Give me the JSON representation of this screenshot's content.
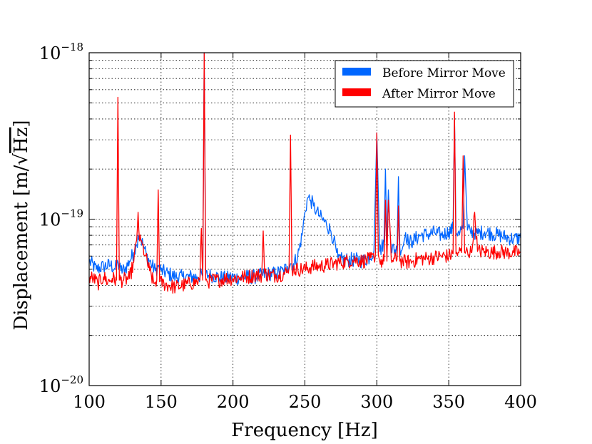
{
  "chart_data": {
    "type": "line",
    "title": "",
    "xlabel": "Frequency [Hz]",
    "ylabel": "Displacement [m/√Hz]",
    "ylabel_main": "Displacement [m/",
    "ylabel_radicand": "Hz",
    "ylabel_close": "]",
    "xlim": [
      100,
      400
    ],
    "ylim": [
      1e-20,
      1e-18
    ],
    "yscale": "log",
    "grid": true,
    "legend_position": "top-right",
    "x_ticks": [
      100,
      150,
      200,
      250,
      300,
      350,
      400
    ],
    "x_tick_labels": [
      "100",
      "150",
      "200",
      "250",
      "300",
      "350",
      "400"
    ],
    "y_ticks": [
      1e-20,
      1e-19,
      1e-18
    ],
    "y_tick_labels": [
      {
        "base": "10",
        "exp": "−20"
      },
      {
        "base": "10",
        "exp": "−19"
      },
      {
        "base": "10",
        "exp": "−18"
      }
    ],
    "series": [
      {
        "name": "Before Mirror Move",
        "color": "#0066ff",
        "x": [
          100,
          105,
          110,
          115,
          118,
          120,
          122,
          125,
          128,
          131,
          133,
          134,
          136,
          138,
          140,
          143,
          146,
          148,
          150,
          155,
          160,
          165,
          170,
          175,
          179,
          180,
          181,
          185,
          190,
          195,
          200,
          205,
          210,
          215,
          220,
          225,
          230,
          235,
          238,
          240,
          242,
          245,
          248,
          250,
          252,
          254,
          256,
          258,
          260,
          262,
          265,
          268,
          270,
          272,
          273,
          275,
          280,
          285,
          290,
          295,
          298,
          300,
          302,
          305,
          306,
          307,
          308,
          310,
          314,
          315,
          316,
          318,
          320,
          322,
          325,
          330,
          335,
          340,
          345,
          350,
          353,
          354,
          355,
          357,
          360,
          361,
          363,
          365,
          370,
          375,
          380,
          385,
          390,
          395,
          400
        ],
        "y": [
          5.6e-20,
          5e-20,
          5.2e-20,
          5.3e-20,
          5e-20,
          5.5e-20,
          4.9e-20,
          5e-20,
          5.6e-20,
          6.3e-20,
          7e-20,
          8e-20,
          7.6e-20,
          6.8e-20,
          6e-20,
          5.4e-20,
          4.9e-20,
          5.2e-20,
          4.9e-20,
          4.7e-20,
          4.5e-20,
          4.5e-20,
          4.5e-20,
          4.5e-20,
          4.6e-20,
          1e-18,
          4.6e-20,
          4.6e-20,
          4.5e-20,
          4.4e-20,
          4.5e-20,
          4.4e-20,
          4.5e-20,
          4.5e-20,
          4.6e-20,
          4.7e-20,
          4.7e-20,
          4.9e-20,
          5.2e-20,
          5.4e-20,
          5.4e-20,
          6e-20,
          8e-20,
          1.1e-19,
          1.35e-19,
          1.3e-19,
          1.2e-19,
          1.12e-19,
          1.05e-19,
          1e-19,
          9.3e-20,
          8.5e-20,
          7.5e-20,
          6.3e-20,
          5.8e-20,
          5.7e-20,
          5.7e-20,
          5.7e-20,
          5.6e-20,
          5.9e-20,
          6.5e-20,
          3.3e-19,
          6.4e-20,
          7.3e-20,
          2e-19,
          6.9e-20,
          1.5e-19,
          6.7e-20,
          6.5e-20,
          1.8e-19,
          6.7e-20,
          6.8e-20,
          8.3e-20,
          7.2e-20,
          7.4e-20,
          8e-20,
          8.1e-20,
          8.3e-20,
          8e-20,
          8.4e-20,
          8.8e-20,
          4.2e-19,
          8.3e-20,
          8.5e-20,
          8.8e-20,
          2.4e-19,
          8.6e-20,
          8.5e-20,
          8.2e-20,
          8.4e-20,
          8.2e-20,
          8e-20,
          7.8e-20,
          7.6e-20,
          7.7e-20
        ]
      },
      {
        "name": "After Mirror Move",
        "color": "#ff0000",
        "x": [
          100,
          103,
          106,
          110,
          113,
          116,
          119,
          120,
          121,
          124,
          128,
          131,
          133,
          134,
          135,
          137,
          139,
          142,
          145,
          147,
          148,
          149,
          152,
          155,
          160,
          165,
          170,
          175,
          177,
          178,
          179,
          180,
          181,
          182,
          185,
          190,
          195,
          200,
          205,
          210,
          215,
          220,
          221,
          222,
          225,
          230,
          235,
          238,
          239,
          240,
          241,
          242,
          245,
          250,
          255,
          260,
          265,
          270,
          275,
          280,
          285,
          290,
          295,
          298,
          299,
          300,
          301,
          302,
          305,
          306,
          307,
          308,
          310,
          314,
          315,
          316,
          318,
          320,
          325,
          330,
          335,
          340,
          345,
          350,
          353,
          354,
          355,
          357,
          359,
          360,
          361,
          363,
          366,
          368,
          370,
          375,
          380,
          385,
          390,
          395,
          400
        ],
        "y": [
          4.5e-20,
          4.4e-20,
          4.1e-20,
          4.5e-20,
          4.2e-20,
          4.4e-20,
          4.3e-20,
          5.4e-19,
          4.3e-20,
          4.3e-20,
          4.4e-20,
          5.5e-20,
          7.5e-20,
          1.1e-19,
          7.4e-20,
          7e-20,
          6e-20,
          4.9e-20,
          4.1e-20,
          4.3e-20,
          1.5e-19,
          4.2e-20,
          4.1e-20,
          4e-20,
          3.9e-20,
          4e-20,
          4.1e-20,
          4.2e-20,
          4.3e-20,
          8.8e-20,
          4.3e-20,
          1e-18,
          4.3e-20,
          4.2e-20,
          4.3e-20,
          4.3e-20,
          4.4e-20,
          4.4e-20,
          4.5e-20,
          4.5e-20,
          4.6e-20,
          4.6e-20,
          8.5e-20,
          4.7e-20,
          4.6e-20,
          4.6e-20,
          4.7e-20,
          4.8e-20,
          5.2e-20,
          3.2e-19,
          5e-20,
          5e-20,
          5e-20,
          5e-20,
          5.2e-20,
          5.2e-20,
          5.3e-20,
          5.4e-20,
          5.5e-20,
          5.6e-20,
          5.7e-20,
          5.6e-20,
          5.7e-20,
          5.9e-20,
          6.2e-20,
          3.3e-19,
          6.1e-20,
          5.6e-20,
          5.6e-20,
          1.3e-19,
          5.6e-20,
          1.3e-19,
          5.7e-20,
          5.7e-20,
          1.2e-19,
          5.6e-20,
          5.6e-20,
          5.5e-20,
          5.6e-20,
          5.8e-20,
          5.8e-20,
          5.9e-20,
          6e-20,
          6e-20,
          6.2e-20,
          4.4e-19,
          6.2e-20,
          6.3e-20,
          6.3e-20,
          2.4e-19,
          6.3e-20,
          6.4e-20,
          6.3e-20,
          1.1e-19,
          6.4e-20,
          6.4e-20,
          6.3e-20,
          6.4e-20,
          6.3e-20,
          6.3e-20,
          6.3e-20
        ]
      }
    ]
  }
}
